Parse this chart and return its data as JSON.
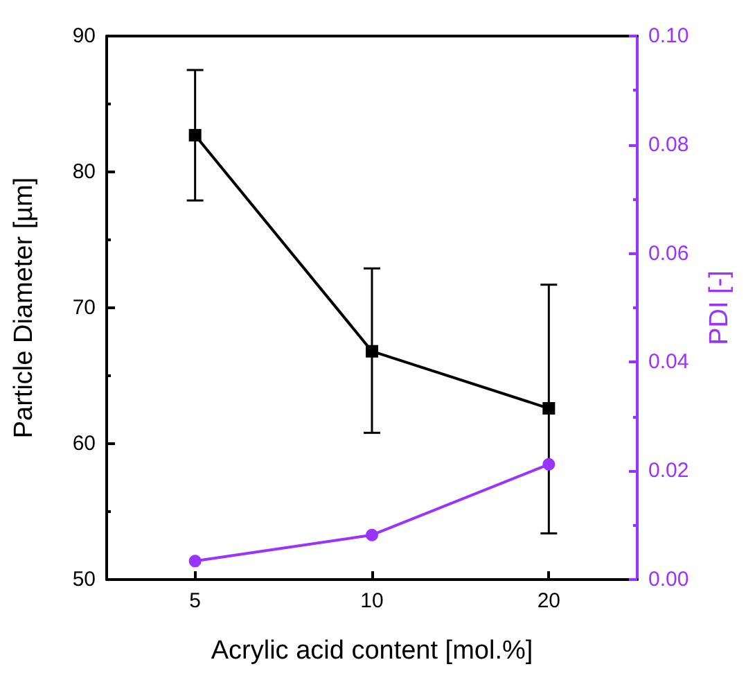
{
  "chart_data": {
    "type": "line",
    "xlabel": "Acrylic acid content [mol.%]",
    "ylabel": "Particle Diameter [µm]",
    "y2label": "PDI [-]",
    "categories": [
      "5",
      "10",
      "20"
    ],
    "series": [
      {
        "color": "#000000",
        "marker": "square",
        "values": [
          82.7,
          66.8,
          62.6
        ],
        "errors": [
          [
            77.9,
            87.5
          ],
          [
            60.8,
            72.9
          ],
          [
            53.4,
            71.7
          ]
        ]
      },
      {
        "color": "#9933ff",
        "marker": "circle",
        "axis": "y2",
        "values": [
          0.0034,
          0.0082,
          0.0212
        ]
      }
    ],
    "ylim": [
      50,
      90
    ],
    "yticks": [
      50,
      60,
      70,
      80,
      90
    ],
    "y2lim": [
      0,
      0.1
    ],
    "y2ticks": [
      {
        "value": 0,
        "label": "0.00"
      },
      {
        "value": 0.02,
        "label": "0.02"
      },
      {
        "value": 0.04,
        "label": "0.04"
      },
      {
        "value": 0.06,
        "label": "0.06"
      },
      {
        "value": 0.08,
        "label": "0.08"
      },
      {
        "value": 0.1,
        "label": "0.10"
      }
    ]
  }
}
